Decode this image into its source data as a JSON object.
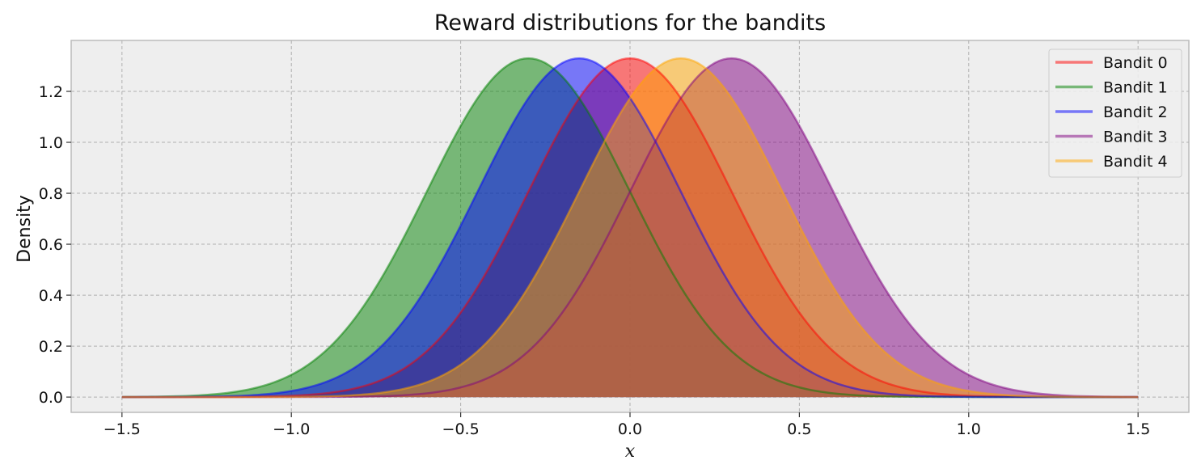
{
  "chart_data": {
    "type": "area",
    "title": "Reward distributions for the bandits",
    "xlabel": "x",
    "ylabel": "Density",
    "xlim": [
      -1.65,
      1.65
    ],
    "ylim": [
      -0.06,
      1.4
    ],
    "x_range": [
      -1.5,
      1.5
    ],
    "distribution": "normal",
    "xticks": [
      -1.5,
      -1.0,
      -0.5,
      0.0,
      0.5,
      1.0,
      1.5
    ],
    "xtick_labels": [
      "−1.5",
      "−1.0",
      "−0.5",
      "0.0",
      "0.5",
      "1.0",
      "1.5"
    ],
    "yticks": [
      0.0,
      0.2,
      0.4,
      0.6,
      0.8,
      1.0,
      1.2
    ],
    "ytick_labels": [
      "0.0",
      "0.2",
      "0.4",
      "0.6",
      "0.8",
      "1.0",
      "1.2"
    ],
    "grid": true,
    "legend_position": "top-right",
    "background": "#eeeeee",
    "series": [
      {
        "name": "Bandit 0",
        "mean": 0.0,
        "std": 0.3,
        "color": "#ff0000"
      },
      {
        "name": "Bandit 1",
        "mean": -0.3,
        "std": 0.3,
        "color": "#008000"
      },
      {
        "name": "Bandit 2",
        "mean": -0.15,
        "std": 0.3,
        "color": "#0000ff"
      },
      {
        "name": "Bandit 3",
        "mean": 0.3,
        "std": 0.3,
        "color": "#800080"
      },
      {
        "name": "Bandit 4",
        "mean": 0.15,
        "std": 0.3,
        "color": "#ffa500"
      }
    ]
  }
}
